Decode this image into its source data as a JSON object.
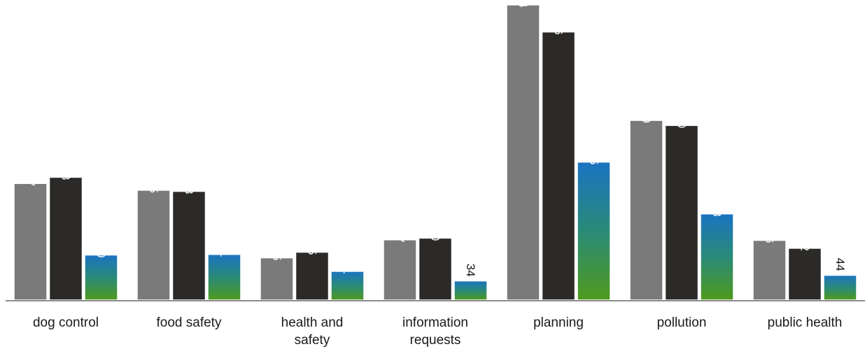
{
  "chart_data": {
    "type": "bar",
    "categories": [
      [
        "dog control"
      ],
      [
        "food safety"
      ],
      [
        "health and",
        "safety"
      ],
      [
        "information",
        "requests"
      ],
      [
        "planning"
      ],
      [
        "pollution"
      ],
      [
        "public health"
      ]
    ],
    "series": [
      {
        "color": "#7a7a7a",
        "values": [
          207,
          195,
          75,
          107,
          524,
          319,
          106
        ]
      },
      {
        "color": "#2b2a28",
        "values": [
          218,
          193,
          85,
          110,
          476,
          310,
          92
        ]
      },
      {
        "color_top": "#1b73c2",
        "color_bottom": "#4f9a1c",
        "values": [
          80,
          81,
          51,
          34,
          245,
          153,
          44
        ]
      }
    ],
    "ylim": [
      0,
      524
    ],
    "legend": "none",
    "grid": false,
    "data_labels": "rotated-vertical"
  }
}
